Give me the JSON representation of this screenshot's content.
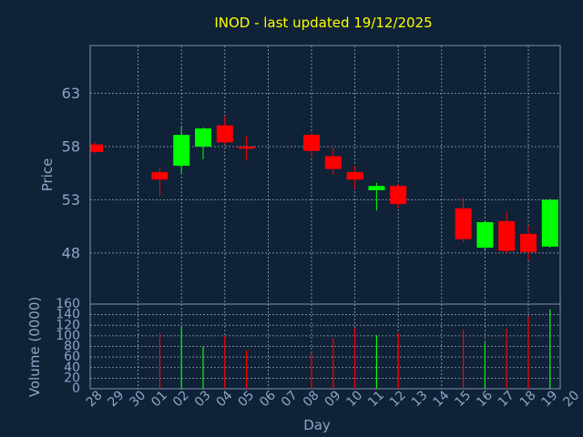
{
  "chart_data": [
    {
      "type": "candlestick",
      "title": "INOD - last updated 19/12/2025",
      "ylabel": "Price",
      "xlabel": "Day",
      "ylim": [
        43.2,
        67.5
      ],
      "y_ticks": [
        "48",
        "53",
        "58",
        "63"
      ],
      "y_tick_values": [
        48,
        53,
        58,
        63
      ],
      "grid": true,
      "x": [
        "28",
        "29",
        "30",
        "01",
        "02",
        "03",
        "04",
        "05",
        "06",
        "07",
        "08",
        "09",
        "10",
        "11",
        "12",
        "13",
        "14",
        "15",
        "16",
        "17",
        "18",
        "19",
        "20"
      ],
      "up_color": "#00ff00",
      "down_color": "#ff0000",
      "candles": [
        {
          "day": "28",
          "open": 58.2,
          "high": 58.4,
          "low": 57.4,
          "close": 57.5
        },
        {
          "day": "01",
          "open": 55.6,
          "high": 56.0,
          "low": 53.4,
          "close": 54.9
        },
        {
          "day": "02",
          "open": 56.2,
          "high": 59.9,
          "low": 55.5,
          "close": 59.1
        },
        {
          "day": "03",
          "open": 58.0,
          "high": 59.8,
          "low": 56.8,
          "close": 59.7
        },
        {
          "day": "04",
          "open": 60.0,
          "high": 60.9,
          "low": 58.2,
          "close": 58.4
        },
        {
          "day": "05",
          "open": 58.0,
          "high": 59.0,
          "low": 56.7,
          "close": 57.8
        },
        {
          "day": "08",
          "open": 59.1,
          "high": 59.3,
          "low": 57.0,
          "close": 57.6
        },
        {
          "day": "09",
          "open": 57.1,
          "high": 57.9,
          "low": 55.4,
          "close": 55.9
        },
        {
          "day": "10",
          "open": 55.6,
          "high": 56.2,
          "low": 54.0,
          "close": 54.9
        },
        {
          "day": "11",
          "open": 53.9,
          "high": 54.6,
          "low": 52.0,
          "close": 54.3
        },
        {
          "day": "12",
          "open": 54.3,
          "high": 54.5,
          "low": 52.2,
          "close": 52.6
        },
        {
          "day": "15",
          "open": 52.2,
          "high": 53.2,
          "low": 49.0,
          "close": 49.3
        },
        {
          "day": "16",
          "open": 48.5,
          "high": 51.0,
          "low": 48.3,
          "close": 50.9
        },
        {
          "day": "17",
          "open": 51.0,
          "high": 51.9,
          "low": 48.0,
          "close": 48.2
        },
        {
          "day": "18",
          "open": 49.8,
          "high": 50.6,
          "low": 47.3,
          "close": 48.1
        },
        {
          "day": "19",
          "open": 48.6,
          "high": 53.1,
          "low": 48.5,
          "close": 53.0
        }
      ]
    },
    {
      "type": "bar",
      "ylabel": "Volume (0000)",
      "xlabel": "Day",
      "ylim": [
        0,
        160
      ],
      "y_ticks": [
        "0",
        "20",
        "40",
        "60",
        "80",
        "100",
        "120",
        "140",
        "160"
      ],
      "y_tick_values": [
        0,
        20,
        40,
        60,
        80,
        100,
        120,
        140,
        160
      ],
      "grid": true,
      "categories": [
        "01",
        "02",
        "03",
        "04",
        "05",
        "08",
        "09",
        "10",
        "11",
        "12",
        "15",
        "16",
        "17",
        "18",
        "19"
      ],
      "values": [
        104,
        117,
        80,
        100,
        73,
        67,
        96,
        115,
        101,
        105,
        112,
        87,
        113,
        137,
        150
      ],
      "colors": [
        "#ff0000",
        "#00ff00",
        "#00ff00",
        "#ff0000",
        "#ff0000",
        "#ff0000",
        "#ff0000",
        "#ff0000",
        "#00ff00",
        "#ff0000",
        "#ff0000",
        "#00ff00",
        "#ff0000",
        "#ff0000",
        "#00ff00"
      ]
    }
  ]
}
